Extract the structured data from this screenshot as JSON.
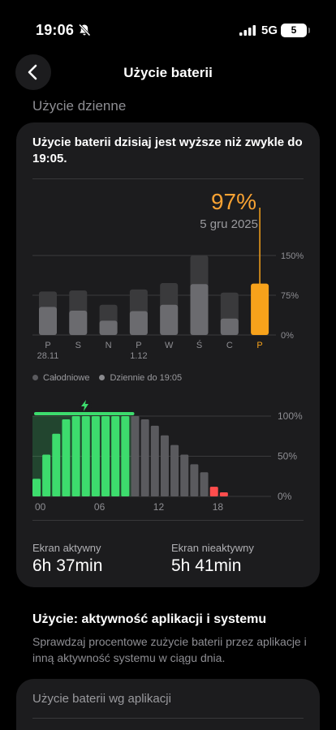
{
  "status_bar": {
    "time": "19:06",
    "network": "5G",
    "battery_level": "5",
    "icons": [
      "bell-slash-icon",
      "signal-bars-icon",
      "battery-icon"
    ]
  },
  "nav": {
    "title": "Użycie baterii",
    "back_icon": "chevron-left-icon"
  },
  "section_daily": "Użycie dzienne",
  "card": {
    "headline": "Użycie baterii dzisiaj jest wyższe niż zwykle do 19:05.",
    "selected_percent": "97%",
    "selected_date": "5 gru 2025",
    "legend": {
      "all_day": "Całodniowe",
      "until_now": "Dziennie do 19:05"
    },
    "screen_active_label": "Ekran aktywny",
    "screen_active_value": "6h 37min",
    "screen_inactive_label": "Ekran nieaktywny",
    "screen_inactive_value": "5h 41min"
  },
  "chart_data": [
    {
      "type": "bar",
      "categories": [
        "P",
        "S",
        "N",
        "P",
        "W",
        "Ś",
        "C",
        "P"
      ],
      "sublabels": [
        "28.11",
        "",
        "",
        "1.12",
        "",
        "",
        "",
        ""
      ],
      "series": [
        {
          "name": "Całodniowe",
          "values": [
            82,
            84,
            57,
            86,
            98,
            150,
            80,
            97
          ]
        },
        {
          "name": "Dziennie do 19:05",
          "values": [
            53,
            46,
            27,
            45,
            57,
            96,
            31,
            97
          ]
        }
      ],
      "ylim": [
        0,
        150
      ],
      "yticks": [
        "0%",
        "75%",
        "150%"
      ],
      "highlight_index": 7,
      "highlight_color": "#f7a21b"
    },
    {
      "type": "bar",
      "x": [
        0,
        1,
        2,
        3,
        4,
        5,
        6,
        7,
        8,
        9,
        10,
        11,
        12,
        13,
        14,
        15,
        16,
        17,
        18,
        19
      ],
      "xticks": [
        "00",
        "06",
        "12",
        "18"
      ],
      "values": [
        22,
        52,
        78,
        96,
        100,
        100,
        100,
        100,
        100,
        100,
        100,
        96,
        88,
        76,
        64,
        52,
        40,
        30,
        12,
        5
      ],
      "charging_hours": [
        0,
        1,
        2,
        3,
        4,
        5,
        6,
        7,
        8,
        9
      ],
      "low_hours": [
        18,
        19
      ],
      "ylim": [
        0,
        100
      ],
      "yticks": [
        "0%",
        "50%",
        "100%"
      ],
      "colors": {
        "charging": "#3ddc6d",
        "normal": "#5a5a5e",
        "low": "#ff4d4d"
      }
    }
  ],
  "usage_section": {
    "title": "Użycie: aktywność aplikacji i systemu",
    "description": "Sprawdzaj procentowe zużycie baterii przez aplikacje i inną aktywność systemu w ciągu dnia."
  },
  "apps_card": {
    "title": "Użycie baterii wg aplikacji"
  }
}
